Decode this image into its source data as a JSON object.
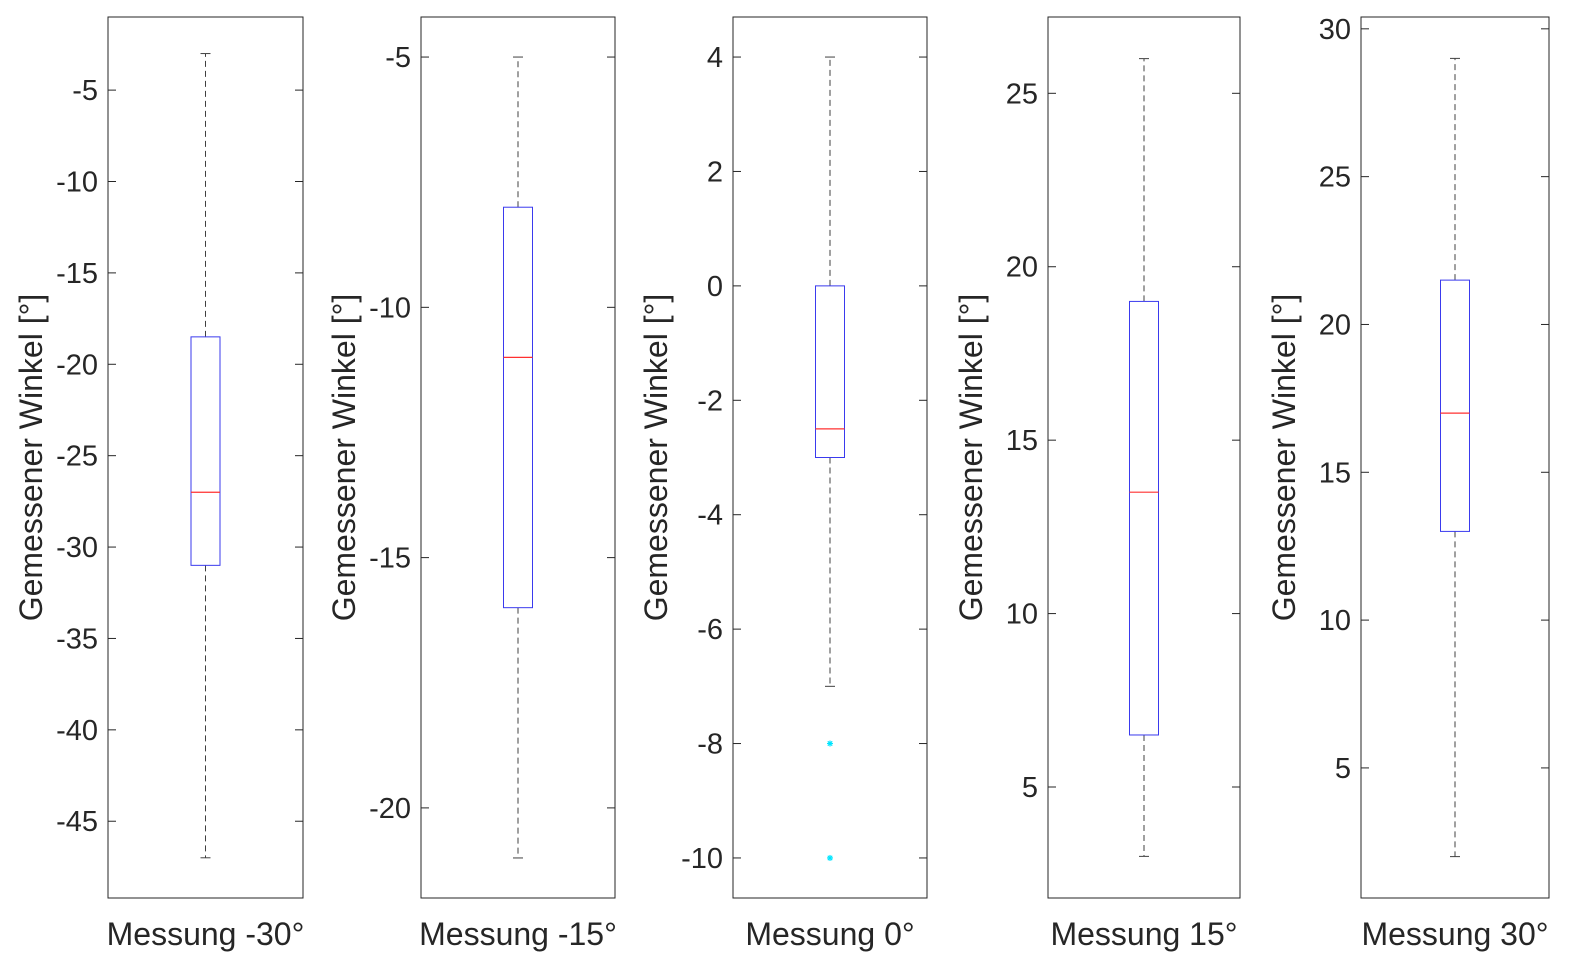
{
  "chart_data": [
    {
      "type": "box",
      "category": "Messung -30°",
      "ylabel": "Gemessener Winkel [°]",
      "ylim": [
        -49.2,
        -1.0
      ],
      "yticks": [
        -45,
        -40,
        -35,
        -30,
        -25,
        -20,
        -15,
        -10,
        -5
      ],
      "ytick_labels": [
        "-45",
        "-40",
        "-35",
        "-30",
        "-25",
        "-20",
        "-15",
        "-10",
        "-5"
      ],
      "whisker_low": -47,
      "q1": -31,
      "median": -27,
      "q3": -18.5,
      "whisker_high": -3,
      "outliers": []
    },
    {
      "type": "box",
      "category": "Messung -15°",
      "ylabel": "Gemessener Winkel [°]",
      "ylim": [
        -21.8,
        -4.2
      ],
      "yticks": [
        -20,
        -15,
        -10,
        -5
      ],
      "ytick_labels": [
        "-20",
        "-15",
        "-10",
        "-5"
      ],
      "whisker_low": -21,
      "q1": -16,
      "median": -11,
      "q3": -8,
      "whisker_high": -5,
      "outliers": []
    },
    {
      "type": "box",
      "category": "Messung 0°",
      "ylabel": "Gemessener Winkel [°]",
      "ylim": [
        -10.7,
        4.7
      ],
      "yticks": [
        -10,
        -8,
        -6,
        -4,
        -2,
        0,
        2,
        4
      ],
      "ytick_labels": [
        "-10",
        "-8",
        "-6",
        "-4",
        "-2",
        "0",
        "2",
        "4"
      ],
      "whisker_low": -7,
      "q1": -3,
      "median": -2.5,
      "q3": 0,
      "whisker_high": 4,
      "outliers": [
        -8,
        -10
      ]
    },
    {
      "type": "box",
      "category": "Messung 15°",
      "ylabel": "Gemessener Winkel [°]",
      "ylim": [
        1.8,
        27.2
      ],
      "yticks": [
        5,
        10,
        15,
        20,
        25
      ],
      "ytick_labels": [
        "5",
        "10",
        "15",
        "20",
        "25"
      ],
      "whisker_low": 3,
      "q1": 6.5,
      "median": 13.5,
      "q3": 19,
      "whisker_high": 26,
      "outliers": []
    },
    {
      "type": "box",
      "category": "Messung 30°",
      "ylabel": "Gemessener Winkel [°]",
      "ylim": [
        0.6,
        30.4
      ],
      "yticks": [
        5,
        10,
        15,
        20,
        25,
        30
      ],
      "ytick_labels": [
        "5",
        "10",
        "15",
        "20",
        "25",
        "30"
      ],
      "whisker_low": 2,
      "q1": 13,
      "median": 17,
      "q3": 21.5,
      "whisker_high": 29,
      "outliers": []
    }
  ],
  "colors": {
    "box": "#3a3aee",
    "median": "#ff3030",
    "whisker": "#404040",
    "outlier": "#00e5ff",
    "axis": "#262626",
    "text": "#262626"
  }
}
